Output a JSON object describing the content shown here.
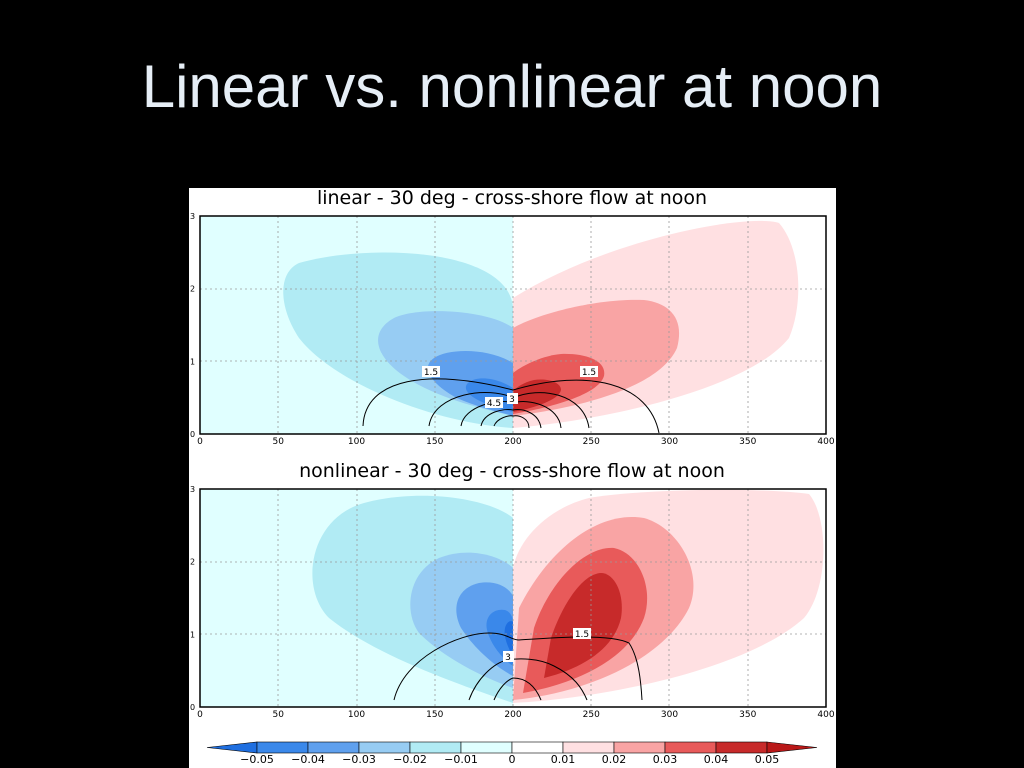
{
  "slide": {
    "title": "Linear vs. nonlinear at noon"
  },
  "chart_data": [
    {
      "type": "contour",
      "title": "linear - 30 deg - cross-shore flow at noon",
      "xlim": [
        0,
        400
      ],
      "ylim": [
        0,
        3
      ],
      "x_ticks": [
        "0",
        "50",
        "100",
        "150",
        "200",
        "250",
        "300",
        "350",
        "400"
      ],
      "y_ticks": [
        "0",
        "1",
        "2",
        "3"
      ],
      "grid": true,
      "grid_style": "dotted",
      "contour_labels": [
        "1.5",
        "4.5",
        "3",
        "1.5"
      ],
      "filled_regions": [
        {
          "sign": "negative",
          "level": -0.01,
          "center_x": 160,
          "center_y": 1.4
        },
        {
          "sign": "negative",
          "level": -0.02,
          "center_x": 165,
          "center_y": 1.05
        },
        {
          "sign": "negative",
          "level": -0.03,
          "center_x": 175,
          "center_y": 0.75
        },
        {
          "sign": "negative",
          "level": -0.04,
          "center_x": 185,
          "center_y": 0.5
        },
        {
          "sign": "positive",
          "level": 0.01,
          "center_x": 260,
          "center_y": 1.6
        },
        {
          "sign": "positive",
          "level": 0.02,
          "center_x": 235,
          "center_y": 1.05
        },
        {
          "sign": "positive",
          "level": 0.03,
          "center_x": 225,
          "center_y": 0.7
        },
        {
          "sign": "positive",
          "level": 0.04,
          "center_x": 212,
          "center_y": 0.45
        }
      ]
    },
    {
      "type": "contour",
      "title": "nonlinear - 30 deg - cross-shore flow at noon",
      "xlim": [
        0,
        400
      ],
      "ylim": [
        0,
        3
      ],
      "x_ticks": [
        "0",
        "50",
        "100",
        "150",
        "200",
        "250",
        "300",
        "350",
        "400"
      ],
      "y_ticks": [
        "0",
        "1",
        "2",
        "3"
      ],
      "grid": true,
      "grid_style": "dotted",
      "contour_labels": [
        "1.5",
        "3"
      ],
      "filled_regions": [
        {
          "sign": "negative",
          "level": -0.01,
          "center_x": 150,
          "center_y": 1.8
        },
        {
          "sign": "negative",
          "level": -0.02,
          "center_x": 175,
          "center_y": 1.2
        },
        {
          "sign": "negative",
          "level": -0.03,
          "center_x": 188,
          "center_y": 1.0
        },
        {
          "sign": "negative",
          "level": -0.04,
          "center_x": 196,
          "center_y": 0.9
        },
        {
          "sign": "positive",
          "level": 0.01,
          "center_x": 285,
          "center_y": 1.9
        },
        {
          "sign": "positive",
          "level": 0.02,
          "center_x": 265,
          "center_y": 1.5
        },
        {
          "sign": "positive",
          "level": 0.03,
          "center_x": 252,
          "center_y": 1.3
        },
        {
          "sign": "positive",
          "level": 0.04,
          "center_x": 245,
          "center_y": 1.15
        }
      ]
    }
  ],
  "colorbar": {
    "labels": [
      "-0.05",
      "-0.04",
      "-0.03",
      "-0.02",
      "-0.01",
      "0",
      "0.01",
      "0.02",
      "0.03",
      "0.04",
      "0.05"
    ],
    "colors": [
      "#1f6fe0",
      "#3a88ea",
      "#5fa0ee",
      "#97ccf3",
      "#b1ebf4",
      "#e0ffff",
      "#ffffff",
      "#ffe0e2",
      "#f9a4a4",
      "#e85a5a",
      "#c72a2a",
      "#b91818"
    ]
  }
}
